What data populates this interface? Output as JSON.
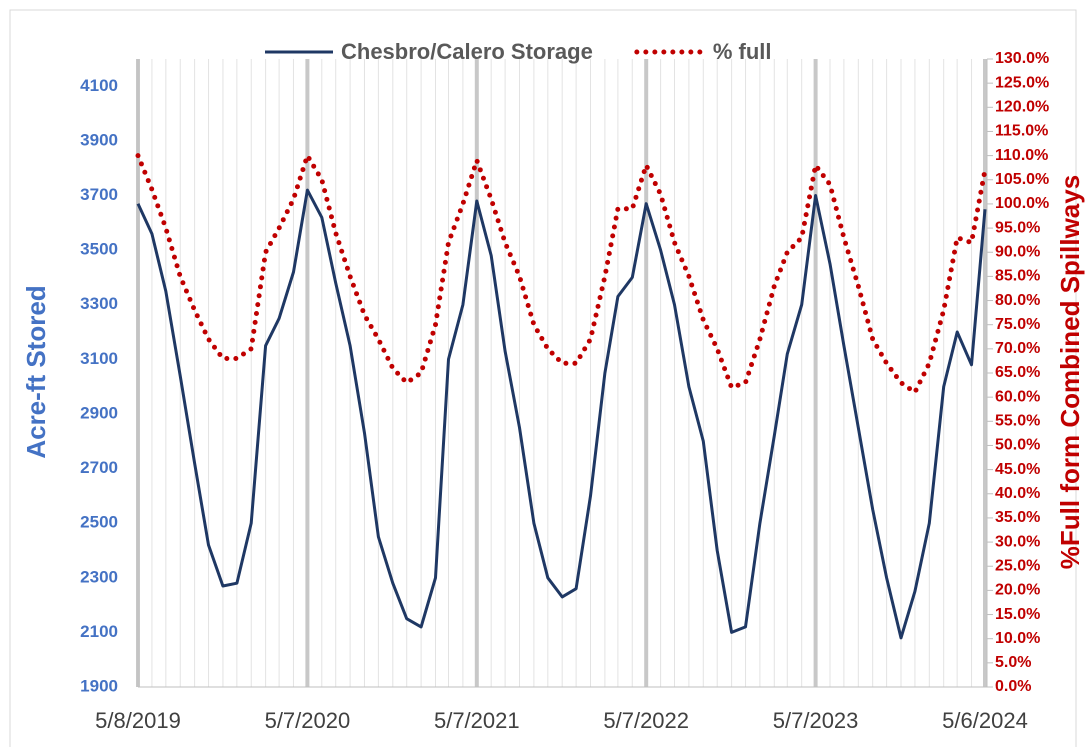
{
  "chart_data": {
    "type": "line",
    "y_label": "Acre-ft Stored",
    "y2_label": "%Full form Combined Spillways",
    "x": [
      "5/8/2019",
      "6/7/2019",
      "7/7/2019",
      "8/7/2019",
      "9/7/2019",
      "10/7/2019",
      "11/7/2019",
      "12/7/2019",
      "1/7/2020",
      "2/7/2020",
      "3/7/2020",
      "4/7/2020",
      "5/7/2020",
      "6/7/2020",
      "7/7/2020",
      "8/7/2020",
      "9/7/2020",
      "10/7/2020",
      "11/7/2020",
      "12/7/2020",
      "1/7/2021",
      "2/7/2021",
      "3/7/2021",
      "4/7/2021",
      "5/7/2021",
      "6/7/2021",
      "7/7/2021",
      "8/7/2021",
      "9/7/2021",
      "10/7/2021",
      "11/7/2021",
      "12/7/2021",
      "1/7/2022",
      "2/7/2022",
      "3/7/2022",
      "4/7/2022",
      "5/7/2022",
      "6/7/2022",
      "7/7/2022",
      "8/7/2022",
      "9/7/2022",
      "10/7/2022",
      "11/7/2022",
      "12/7/2022",
      "1/7/2023",
      "2/7/2023",
      "3/7/2023",
      "4/7/2023",
      "5/7/2023",
      "6/7/2023",
      "7/7/2023",
      "8/7/2023",
      "9/7/2023",
      "10/7/2023",
      "11/7/2023",
      "12/7/2023",
      "1/7/2024",
      "2/7/2024",
      "3/7/2024",
      "4/7/2024",
      "5/6/2024"
    ],
    "series": [
      {
        "name": "Chesbro/Calero Storage",
        "color": "#1f3864",
        "values": [
          3670,
          3560,
          3350,
          3040,
          2720,
          2420,
          2270,
          2280,
          2500,
          3150,
          3250,
          3420,
          3720,
          3620,
          3380,
          3150,
          2830,
          2450,
          2280,
          2150,
          2120,
          2300,
          3100,
          3300,
          3680,
          3480,
          3130,
          2850,
          2500,
          2300,
          2230,
          2260,
          2600,
          3050,
          3330,
          3400,
          3670,
          3500,
          3300,
          3000,
          2800,
          2400,
          2100,
          2120,
          2500,
          2820,
          3120,
          3300,
          3700,
          3450,
          3150,
          2850,
          2550,
          2300,
          2080,
          2250,
          2500,
          3000,
          3200,
          3080,
          3650
        ]
      },
      {
        "name": "% full",
        "color": "#c00000",
        "axis": "y2",
        "values": [
          110,
          103,
          95,
          85,
          78,
          72,
          68,
          68,
          70,
          90,
          95,
          101,
          110,
          105,
          94,
          85,
          77,
          72,
          66,
          63,
          65,
          75,
          92,
          100,
          109,
          101,
          92,
          85,
          75,
          70,
          67,
          67,
          72,
          85,
          99,
          99,
          108,
          102,
          92,
          85,
          76,
          70,
          62,
          63,
          72,
          83,
          90,
          93,
          108,
          104,
          93,
          83,
          72,
          67,
          63,
          61,
          67,
          78,
          93,
          92,
          107
        ]
      }
    ],
    "xlim": [
      "5/8/2019",
      "5/6/2024"
    ],
    "xticks": [
      "5/8/2019",
      "5/7/2020",
      "5/7/2021",
      "5/7/2022",
      "5/7/2023",
      "5/6/2024"
    ],
    "ylim": [
      1900,
      4200
    ],
    "yticks": [
      1900,
      2100,
      2300,
      2500,
      2700,
      2900,
      3100,
      3300,
      3500,
      3700,
      3900,
      4100
    ],
    "y2lim": [
      0,
      130
    ],
    "y2ticks": [
      {
        "value": 0,
        "label": "0.0%"
      },
      {
        "value": 5,
        "label": "5.0%"
      },
      {
        "value": 10,
        "label": "10.0%"
      },
      {
        "value": 15,
        "label": "15.0%"
      },
      {
        "value": 20,
        "label": "20.0%"
      },
      {
        "value": 25,
        "label": "25.0%"
      },
      {
        "value": 30,
        "label": "30.0%"
      },
      {
        "value": 35,
        "label": "35.0%"
      },
      {
        "value": 40,
        "label": "40.0%"
      },
      {
        "value": 45,
        "label": "45.0%"
      },
      {
        "value": 50,
        "label": "50.0%"
      },
      {
        "value": 55,
        "label": "55.0%"
      },
      {
        "value": 60,
        "label": "60.0%"
      },
      {
        "value": 65,
        "label": "65.0%"
      },
      {
        "value": 70,
        "label": "70.0%"
      },
      {
        "value": 75,
        "label": "75.0%"
      },
      {
        "value": 80,
        "label": "80.0%"
      },
      {
        "value": 85,
        "label": "85.0%"
      },
      {
        "value": 90,
        "label": "90.0%"
      },
      {
        "value": 95,
        "label": "95.0%"
      },
      {
        "value": 100,
        "label": "100.0%"
      },
      {
        "value": 105,
        "label": "105.0%"
      },
      {
        "value": 110,
        "label": "110.0%"
      },
      {
        "value": 115,
        "label": "115.0%"
      },
      {
        "value": 120,
        "label": "120.0%"
      },
      {
        "value": 125,
        "label": "125.0%"
      },
      {
        "value": 130,
        "label": "130.0%"
      }
    ],
    "grid": true,
    "legend": "top"
  }
}
